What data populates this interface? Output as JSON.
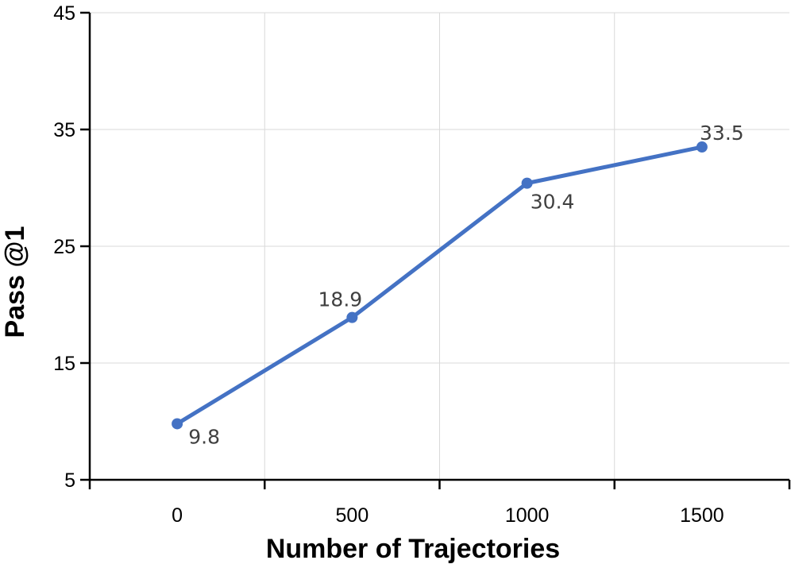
{
  "chart_data": {
    "type": "line",
    "title": "",
    "xlabel": "Number of Trajectories",
    "ylabel": "Pass @1",
    "categories": [
      "0",
      "500",
      "1000",
      "1500"
    ],
    "series": [
      {
        "values": [
          9.8,
          18.9,
          30.4,
          33.5
        ],
        "color": "#4472C4"
      }
    ],
    "data_labels": [
      "9.8",
      "18.9",
      "30.4",
      "33.5"
    ],
    "ylim": [
      5,
      45
    ],
    "yticks": [
      "5",
      "15",
      "25",
      "35",
      "45"
    ],
    "grid": true,
    "legend": "none",
    "colors": {
      "series": "#4472C4",
      "grid": "#d9d9d9",
      "axis": "#000000",
      "label": "#404040"
    }
  }
}
